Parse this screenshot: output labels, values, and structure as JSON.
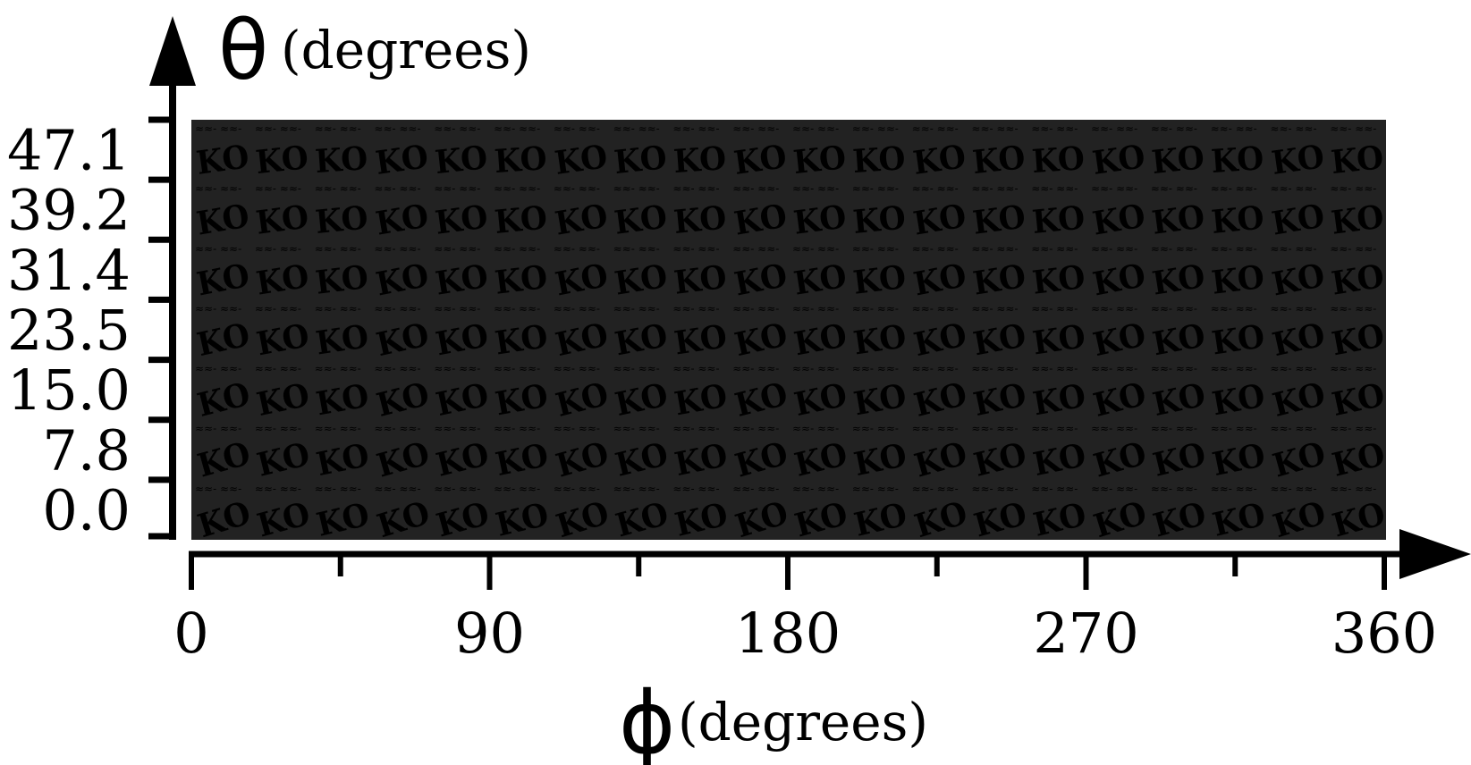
{
  "figure": {
    "y_axis": {
      "symbol": "θ",
      "unit": "(degrees)",
      "tick_labels": [
        "0.0",
        "7.8",
        "15.0",
        "23.5",
        "31.4",
        "39.2",
        "47.1"
      ]
    },
    "x_axis": {
      "symbol": "ϕ",
      "unit": "(degrees)",
      "tick_labels": [
        "0",
        "90",
        "180",
        "270",
        "360"
      ],
      "minor_ticks": 4
    },
    "grid": {
      "rows": 7,
      "columns": 20,
      "tile_text": "KO",
      "tile_caption_glyphs": "≈≈- ≈≈-",
      "background_color": "#222222",
      "tile_color": "#ffffff"
    }
  }
}
